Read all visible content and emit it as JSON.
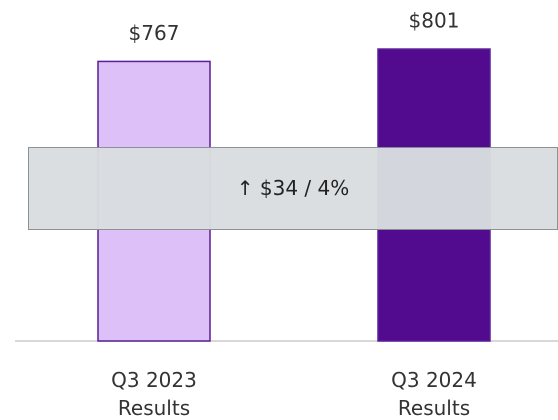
{
  "chart_data": {
    "type": "bar",
    "categories": [
      "Q3 2023\nResults",
      "Q3 2024\nResults"
    ],
    "values": [
      767,
      801
    ],
    "value_labels": [
      "$767",
      "$801"
    ],
    "colors": [
      "#dcc0f7",
      "#520a8f"
    ],
    "edgecolor": "#5a1e96",
    "annotation": "↑ $34 / 4%"
  }
}
